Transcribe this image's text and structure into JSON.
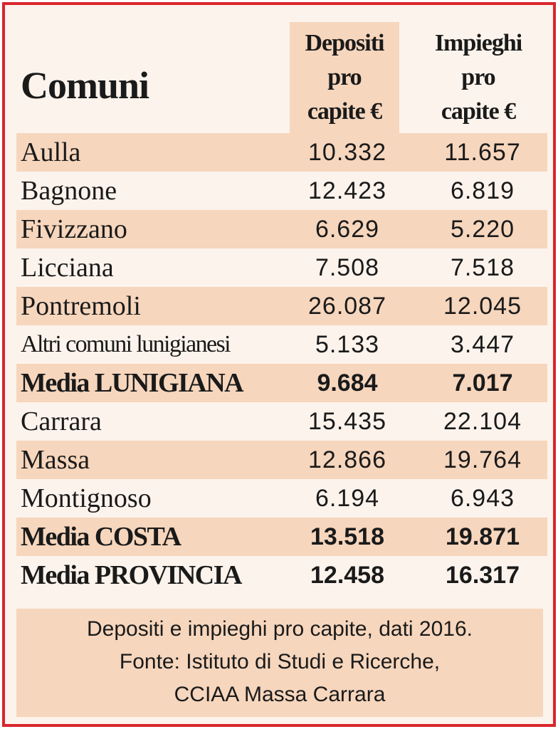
{
  "header": {
    "title": "Comuni",
    "col_depositi": [
      "Depositi",
      "pro",
      "capite €"
    ],
    "col_impieghi": [
      "Impieghi",
      "pro",
      "capite €"
    ]
  },
  "rows": [
    {
      "name": "Aulla",
      "depositi": "10.332",
      "impieghi": "11.657"
    },
    {
      "name": "Bagnone",
      "depositi": "12.423",
      "impieghi": "6.819"
    },
    {
      "name": "Fivizzano",
      "depositi": "6.629",
      "impieghi": "5.220"
    },
    {
      "name": "Licciana",
      "depositi": "7.508",
      "impieghi": "7.518"
    },
    {
      "name": "Pontremoli",
      "depositi": "26.087",
      "impieghi": "12.045"
    },
    {
      "name": "Altri comuni lunigianesi",
      "depositi": "5.133",
      "impieghi": "3.447"
    },
    {
      "name": "Media LUNIGIANA",
      "depositi": "9.684",
      "impieghi": "7.017"
    },
    {
      "name": "Carrara",
      "depositi": "15.435",
      "impieghi": "22.104"
    },
    {
      "name": "Massa",
      "depositi": "12.866",
      "impieghi": "19.764"
    },
    {
      "name": "Montignoso",
      "depositi": "6.194",
      "impieghi": "6.943"
    },
    {
      "name": "Media COSTA",
      "depositi": "13.518",
      "impieghi": "19.871"
    },
    {
      "name": "Media PROVINCIA",
      "depositi": "12.458",
      "impieghi": "16.317"
    }
  ],
  "footer": {
    "lines": [
      "Depositi e impieghi pro capite, dati 2016.",
      "Fonte: Istituto di Studi e Ricerche,",
      "CCIAA Massa Carrara"
    ]
  },
  "colors": {
    "border": "#d8262c",
    "background": "#fcf3ec",
    "shade": "#f6d6bd",
    "text": "#1a1a1a"
  }
}
